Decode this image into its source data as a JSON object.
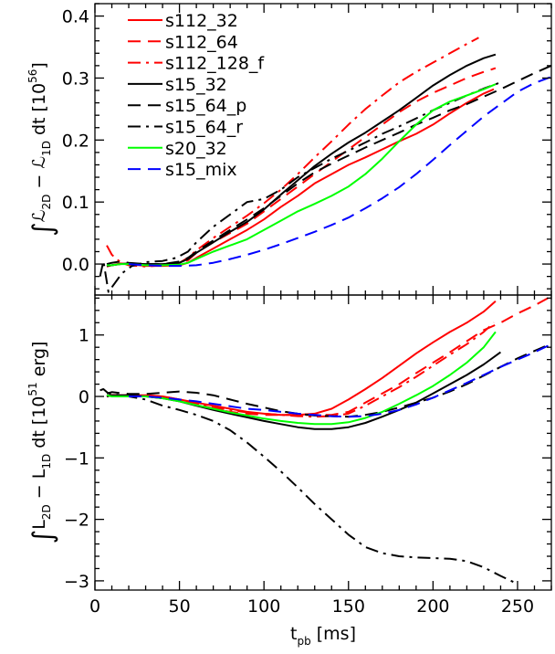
{
  "chart_data": [
    {
      "type": "line",
      "panel": "top",
      "ylabel_parts": [
        "∫",
        "ℒ",
        "2D",
        " − ",
        "ℒ",
        "1D",
        " dt  [10",
        "56",
        "]"
      ],
      "xlim": [
        0,
        270
      ],
      "ylim": [
        -0.05,
        0.42
      ],
      "yticks": [
        0.0,
        0.1,
        0.2,
        0.3,
        0.4
      ],
      "ytick_labels": [
        "0.0",
        "0.1",
        "0.2",
        "0.3",
        "0.4"
      ],
      "xticks": [
        0,
        50,
        100,
        150,
        200,
        250
      ],
      "legend_position": "top-left",
      "series": [
        {
          "name": "s112_32",
          "color": "#ff0000",
          "dash": "solid",
          "x": [
            7,
            10,
            15,
            20,
            30,
            40,
            50,
            55,
            60,
            70,
            80,
            90,
            100,
            110,
            120,
            130,
            140,
            150,
            160,
            170,
            180,
            190,
            200,
            210,
            220,
            230,
            236
          ],
          "y": [
            -0.003,
            -0.002,
            0.001,
            0.0,
            -0.003,
            -0.003,
            -0.002,
            0.002,
            0.01,
            0.025,
            0.04,
            0.055,
            0.072,
            0.092,
            0.11,
            0.13,
            0.145,
            0.16,
            0.172,
            0.185,
            0.198,
            0.21,
            0.225,
            0.243,
            0.26,
            0.275,
            0.282
          ]
        },
        {
          "name": "s112_64",
          "color": "#ff0000",
          "dash": "14,8",
          "x": [
            7,
            10,
            15,
            20,
            30,
            40,
            50,
            55,
            60,
            70,
            80,
            90,
            100,
            110,
            120,
            130,
            140,
            150,
            160,
            170,
            180,
            190,
            200,
            210,
            220,
            230,
            237
          ],
          "y": [
            -0.004,
            -0.002,
            0.0,
            0.0,
            -0.002,
            -0.002,
            0.0,
            0.006,
            0.018,
            0.035,
            0.05,
            0.065,
            0.085,
            0.105,
            0.125,
            0.145,
            0.165,
            0.185,
            0.205,
            0.225,
            0.245,
            0.262,
            0.276,
            0.288,
            0.3,
            0.31,
            0.316
          ]
        },
        {
          "name": "s112_128_f",
          "color": "#ff0000",
          "dash": "14,6,3,6",
          "x": [
            7,
            10,
            15,
            20,
            30,
            40,
            50,
            55,
            60,
            70,
            80,
            90,
            100,
            110,
            120,
            130,
            140,
            150,
            160,
            170,
            180,
            190,
            200,
            210,
            220,
            227
          ],
          "y": [
            0.03,
            0.015,
            0.003,
            -0.002,
            -0.004,
            -0.002,
            0.002,
            0.01,
            0.022,
            0.042,
            0.06,
            0.078,
            0.098,
            0.12,
            0.145,
            0.172,
            0.198,
            0.225,
            0.25,
            0.272,
            0.293,
            0.31,
            0.325,
            0.34,
            0.355,
            0.365
          ]
        },
        {
          "name": "s15_32",
          "color": "#000000",
          "dash": "solid",
          "x": [
            7,
            10,
            15,
            20,
            30,
            40,
            50,
            55,
            60,
            70,
            80,
            90,
            100,
            110,
            120,
            130,
            140,
            150,
            160,
            170,
            180,
            190,
            200,
            210,
            220,
            230,
            237
          ],
          "y": [
            -0.003,
            -0.002,
            0.0,
            0.001,
            0.0,
            0.0,
            0.002,
            0.008,
            0.018,
            0.035,
            0.052,
            0.068,
            0.088,
            0.112,
            0.135,
            0.158,
            0.178,
            0.196,
            0.212,
            0.23,
            0.248,
            0.268,
            0.288,
            0.305,
            0.32,
            0.332,
            0.338
          ]
        },
        {
          "name": "s15_64_p",
          "color": "#000000",
          "dash": "14,8",
          "x": [
            7,
            10,
            15,
            20,
            30,
            40,
            50,
            55,
            60,
            70,
            80,
            90,
            100,
            110,
            120,
            130,
            140,
            150,
            160,
            170,
            180,
            190,
            200,
            210,
            220,
            230,
            240,
            250,
            260,
            270
          ],
          "y": [
            0.0,
            0.002,
            0.004,
            0.002,
            0.0,
            0.0,
            0.004,
            0.01,
            0.02,
            0.038,
            0.055,
            0.072,
            0.09,
            0.11,
            0.13,
            0.148,
            0.162,
            0.175,
            0.188,
            0.2,
            0.212,
            0.225,
            0.236,
            0.248,
            0.258,
            0.27,
            0.282,
            0.295,
            0.308,
            0.32
          ]
        },
        {
          "name": "s15_64_r",
          "color": "#000000",
          "dash": "14,6,3,6",
          "x": [
            3,
            5,
            8,
            12,
            16,
            22,
            30,
            40,
            48,
            55,
            60,
            70,
            80,
            90,
            100,
            110,
            120,
            130,
            140,
            150,
            160,
            170,
            180,
            190,
            200,
            210,
            220,
            230,
            240
          ],
          "y": [
            -0.02,
            0.005,
            -0.045,
            -0.03,
            -0.015,
            -0.003,
            0.003,
            0.005,
            0.01,
            0.02,
            0.035,
            0.06,
            0.08,
            0.1,
            0.105,
            0.12,
            0.14,
            0.155,
            0.17,
            0.183,
            0.196,
            0.21,
            0.222,
            0.235,
            0.248,
            0.26,
            0.272,
            0.283,
            0.293
          ]
        },
        {
          "name": "s20_32",
          "color": "#00ff00",
          "dash": "solid",
          "x": [
            7,
            10,
            15,
            20,
            30,
            40,
            50,
            55,
            60,
            70,
            80,
            90,
            100,
            110,
            120,
            130,
            140,
            150,
            160,
            170,
            180,
            190,
            200,
            210,
            220,
            230,
            237
          ],
          "y": [
            -0.002,
            -0.002,
            0.0,
            0.0,
            -0.002,
            -0.002,
            -0.001,
            0.002,
            0.008,
            0.02,
            0.03,
            0.04,
            0.055,
            0.07,
            0.085,
            0.097,
            0.11,
            0.125,
            0.145,
            0.17,
            0.198,
            0.225,
            0.248,
            0.262,
            0.272,
            0.282,
            0.29
          ]
        },
        {
          "name": "s15_mix",
          "color": "#0000ff",
          "dash": "14,8",
          "x": [
            20,
            30,
            40,
            50,
            60,
            70,
            80,
            90,
            100,
            110,
            120,
            130,
            140,
            150,
            160,
            170,
            180,
            190,
            200,
            210,
            220,
            230,
            240,
            250,
            260,
            270
          ],
          "y": [
            0.0,
            -0.002,
            -0.003,
            -0.003,
            -0.002,
            0.002,
            0.008,
            0.015,
            0.023,
            0.032,
            0.042,
            0.052,
            0.063,
            0.075,
            0.09,
            0.106,
            0.124,
            0.145,
            0.168,
            0.192,
            0.215,
            0.238,
            0.258,
            0.278,
            0.292,
            0.302
          ]
        }
      ]
    },
    {
      "type": "line",
      "panel": "bottom",
      "ylabel_parts": [
        "∫",
        "L",
        "2D",
        " − L",
        "1D",
        " dt  [10",
        "51",
        " erg]"
      ],
      "xlabel_parts": [
        "t",
        "pb",
        " [ms]"
      ],
      "xlim": [
        0,
        270
      ],
      "ylim": [
        -3.15,
        1.65
      ],
      "yticks": [
        1,
        0,
        -1,
        -2,
        -3
      ],
      "ytick_labels": [
        "1",
        "0",
        "−1",
        "−2",
        "−3"
      ],
      "xticks": [
        0,
        50,
        100,
        150,
        200,
        250
      ],
      "xtick_labels": [
        "0",
        "50",
        "100",
        "150",
        "200",
        "250"
      ],
      "series": [
        {
          "name": "s112_32",
          "color": "#ff0000",
          "dash": "solid",
          "x": [
            7,
            10,
            20,
            30,
            40,
            50,
            60,
            70,
            80,
            90,
            100,
            110,
            120,
            130,
            140,
            150,
            160,
            170,
            180,
            190,
            200,
            210,
            220,
            230,
            237
          ],
          "y": [
            0.0,
            0.02,
            0.02,
            0.02,
            0.0,
            -0.05,
            -0.1,
            -0.15,
            -0.2,
            -0.25,
            -0.28,
            -0.3,
            -0.3,
            -0.28,
            -0.2,
            -0.05,
            0.12,
            0.3,
            0.5,
            0.7,
            0.88,
            1.05,
            1.2,
            1.38,
            1.55
          ]
        },
        {
          "name": "s112_64",
          "color": "#ff0000",
          "dash": "14,8",
          "x": [
            7,
            10,
            20,
            30,
            40,
            50,
            60,
            70,
            80,
            90,
            100,
            110,
            120,
            130,
            140,
            150,
            160,
            170,
            180,
            190,
            200,
            210,
            220,
            230,
            240,
            250,
            260,
            268
          ],
          "y": [
            0.0,
            0.02,
            0.02,
            0.02,
            0.0,
            -0.05,
            -0.12,
            -0.2,
            -0.25,
            -0.28,
            -0.3,
            -0.3,
            -0.3,
            -0.3,
            -0.3,
            -0.25,
            -0.1,
            0.05,
            0.2,
            0.38,
            0.55,
            0.72,
            0.9,
            1.08,
            1.2,
            1.35,
            1.48,
            1.6
          ]
        },
        {
          "name": "s112_128_f",
          "color": "#ff0000",
          "dash": "14,6,3,6",
          "x": [
            7,
            10,
            20,
            30,
            40,
            50,
            60,
            70,
            80,
            90,
            100,
            110,
            120,
            130,
            140,
            150,
            160,
            170,
            180,
            190,
            200,
            210,
            220,
            230,
            236
          ],
          "y": [
            0.0,
            0.02,
            0.02,
            0.0,
            -0.02,
            -0.06,
            -0.12,
            -0.18,
            -0.22,
            -0.26,
            -0.28,
            -0.3,
            -0.32,
            -0.33,
            -0.32,
            -0.28,
            -0.15,
            0.0,
            0.15,
            0.32,
            0.5,
            0.68,
            0.85,
            1.05,
            1.2
          ]
        },
        {
          "name": "s15_32",
          "color": "#000000",
          "dash": "solid",
          "x": [
            7,
            10,
            20,
            30,
            40,
            50,
            60,
            70,
            80,
            90,
            100,
            110,
            120,
            130,
            140,
            150,
            160,
            170,
            180,
            190,
            200,
            210,
            220,
            230,
            240
          ],
          "y": [
            0.0,
            0.02,
            0.02,
            0.0,
            -0.03,
            -0.08,
            -0.15,
            -0.22,
            -0.28,
            -0.34,
            -0.4,
            -0.45,
            -0.5,
            -0.53,
            -0.53,
            -0.5,
            -0.43,
            -0.33,
            -0.22,
            -0.1,
            0.05,
            0.2,
            0.35,
            0.52,
            0.72
          ]
        },
        {
          "name": "s15_64_p",
          "color": "#000000",
          "dash": "14,8",
          "x": [
            7,
            10,
            20,
            30,
            40,
            50,
            60,
            70,
            80,
            90,
            100,
            110,
            120,
            130,
            140,
            150,
            160,
            170,
            180,
            190,
            200,
            210,
            220,
            230,
            240,
            250,
            260,
            270
          ],
          "y": [
            0.05,
            0.07,
            0.04,
            0.04,
            0.06,
            0.08,
            0.06,
            0.02,
            -0.05,
            -0.12,
            -0.18,
            -0.24,
            -0.28,
            -0.31,
            -0.32,
            -0.33,
            -0.3,
            -0.25,
            -0.18,
            -0.1,
            -0.02,
            0.08,
            0.2,
            0.34,
            0.48,
            0.62,
            0.74,
            0.86
          ]
        },
        {
          "name": "s15_64_r",
          "color": "#000000",
          "dash": "14,6,3,6",
          "x": [
            3,
            5,
            8,
            12,
            20,
            30,
            40,
            50,
            60,
            70,
            80,
            90,
            100,
            110,
            120,
            130,
            140,
            150,
            160,
            170,
            180,
            190,
            200,
            210,
            220,
            230,
            240,
            250
          ],
          "y": [
            0.1,
            0.12,
            0.05,
            0.03,
            0.0,
            -0.05,
            -0.15,
            -0.22,
            -0.3,
            -0.4,
            -0.55,
            -0.75,
            -0.98,
            -1.22,
            -1.48,
            -1.75,
            -2.0,
            -2.25,
            -2.45,
            -2.55,
            -2.6,
            -2.62,
            -2.63,
            -2.64,
            -2.68,
            -2.78,
            -2.92,
            -3.05
          ]
        },
        {
          "name": "s20_32",
          "color": "#00ff00",
          "dash": "solid",
          "x": [
            7,
            10,
            20,
            30,
            40,
            50,
            60,
            70,
            80,
            90,
            100,
            110,
            120,
            130,
            140,
            150,
            160,
            170,
            180,
            190,
            200,
            210,
            220,
            230,
            237
          ],
          "y": [
            0.02,
            0.0,
            0.0,
            0.0,
            -0.03,
            -0.08,
            -0.14,
            -0.2,
            -0.26,
            -0.31,
            -0.36,
            -0.4,
            -0.43,
            -0.45,
            -0.45,
            -0.42,
            -0.35,
            -0.25,
            -0.12,
            0.02,
            0.17,
            0.35,
            0.55,
            0.8,
            1.05
          ]
        },
        {
          "name": "s15_mix",
          "color": "#0000ff",
          "dash": "14,8",
          "x": [
            20,
            30,
            40,
            50,
            60,
            70,
            80,
            90,
            100,
            110,
            120,
            130,
            140,
            150,
            160,
            170,
            180,
            190,
            200,
            210,
            220,
            230,
            240,
            250,
            260,
            270
          ],
          "y": [
            0.0,
            0.0,
            -0.02,
            -0.05,
            -0.08,
            -0.12,
            -0.16,
            -0.2,
            -0.22,
            -0.25,
            -0.28,
            -0.3,
            -0.32,
            -0.33,
            -0.32,
            -0.28,
            -0.22,
            -0.13,
            -0.02,
            0.1,
            0.22,
            0.35,
            0.48,
            0.6,
            0.72,
            0.85
          ]
        }
      ]
    }
  ]
}
